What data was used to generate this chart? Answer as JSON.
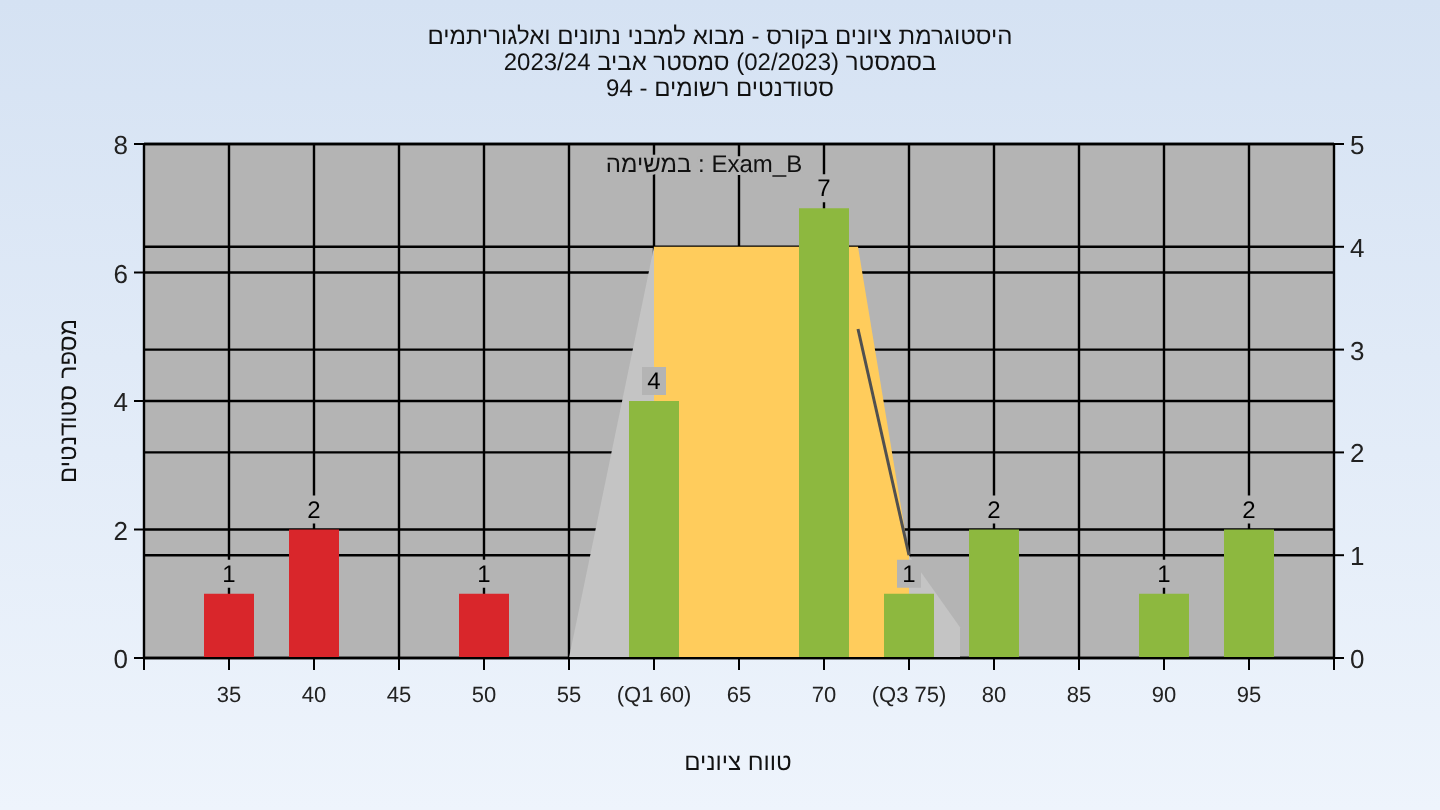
{
  "chart_data": {
    "type": "bar",
    "title": "היסטוגרמת ציונים בקורס - מבוא למבני נתונים ואלגוריתמים",
    "subtitle": "בסמסטר  (02/2023)  סמסטר אביב 2023/24",
    "xlabel": "טווח ציונים",
    "ylabel": "מספר סטודנטים",
    "annotations": [
      "סטודנטים רשומים - 94",
      "במשימה : Exam_B"
    ],
    "xlim": [
      30,
      100
    ],
    "xticks": [
      {
        "value": 30,
        "label": null
      },
      35,
      40,
      45,
      50,
      55,
      {
        "value": 60,
        "label": "(Q1 60)"
      },
      65,
      70,
      {
        "value": 75,
        "label": "(Q3 75)"
      },
      80,
      85,
      90,
      95,
      {
        "value": 100,
        "label": null
      }
    ],
    "ylim": [
      0,
      8
    ],
    "yticks": [
      0,
      2,
      4,
      6,
      8
    ],
    "y2lim": [
      0,
      5
    ],
    "y2ticks": [
      0,
      1,
      2,
      3,
      4,
      5
    ],
    "grid": true,
    "series": [
      {
        "type": "area",
        "axis": "y2",
        "color": "#c4c4c4",
        "x": [
          55,
          60,
          75,
          78
        ],
        "values": [
          0,
          4,
          1,
          0.3
        ]
      },
      {
        "type": "area",
        "axis": "y2",
        "color": "#ffcc5c",
        "x": [
          60,
          60,
          72,
          75,
          75
        ],
        "values": [
          0,
          4,
          4,
          1,
          0
        ]
      },
      {
        "type": "line",
        "axis": "y2",
        "color": "#505050",
        "x": [
          72,
          75
        ],
        "values": [
          3.2,
          1
        ]
      },
      {
        "x": [
          35,
          40,
          50,
          60,
          70,
          75,
          80,
          90,
          95
        ],
        "values": [
          1,
          2,
          1,
          4,
          7,
          1,
          2,
          1,
          2
        ],
        "value_labels": [
          "1",
          "2",
          "1",
          "4",
          "7",
          "1",
          "2",
          "1",
          "2"
        ],
        "colors": [
          "#d9262b",
          "#d9262b",
          "#d9262b",
          "#8db83f",
          "#8db83f",
          "#8db83f",
          "#8db83f",
          "#8db83f",
          "#8db83f"
        ]
      }
    ]
  }
}
